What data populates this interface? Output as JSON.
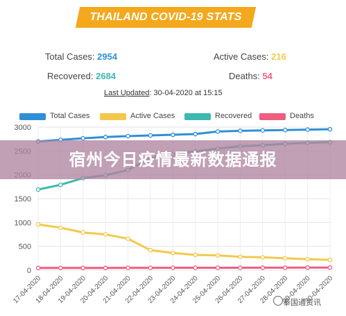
{
  "banner": {
    "title": "THAILAND COVID-19 STATS"
  },
  "stats": {
    "total_label": "Total Cases:",
    "total_value": "2954",
    "recovered_label": "Recovered:",
    "recovered_value": "2684",
    "active_label": "Active Cases:",
    "active_value": "216",
    "deaths_label": "Deaths:",
    "deaths_value": "54",
    "updated_label": "Last Updated",
    "updated_value": ": 30-04-2020 at 15:15"
  },
  "overlay": {
    "text": "宿州今日疫情最新数据通报"
  },
  "watermark": {
    "text": "泰国通资讯"
  },
  "colors": {
    "total": "#2f8fd6",
    "active": "#f5c84b",
    "recovered": "#3db8b0",
    "deaths": "#ef5d80",
    "banner": "#f3a81d",
    "overlay": "#b084a0"
  },
  "chart_data": {
    "type": "line",
    "categories": [
      "17-04-2020",
      "18-04-2020",
      "19-04-2020",
      "20-04-2020",
      "21-04-2020",
      "22-04-2020",
      "23-04-2020",
      "24-04-2020",
      "25-04-2020",
      "26-04-2020",
      "27-04-2020",
      "28-04-2020",
      "29-04-2020",
      "30-04-2020"
    ],
    "ylim": [
      0,
      3000
    ],
    "yticks": [
      0,
      500,
      1000,
      1500,
      2000,
      2500,
      3000
    ],
    "grid": true,
    "legend_position": "top",
    "series": [
      {
        "name": "Total Cases",
        "color": "#2f8fd6",
        "values": [
          2700,
          2733,
          2765,
          2792,
          2811,
          2826,
          2839,
          2854,
          2907,
          2922,
          2931,
          2938,
          2947,
          2954
        ]
      },
      {
        "name": "Active Cases",
        "color": "#f5c84b",
        "values": [
          960,
          890,
          790,
          750,
          660,
          420,
          360,
          320,
          310,
          280,
          270,
          250,
          230,
          216
        ]
      },
      {
        "name": "Recovered",
        "color": "#3db8b0",
        "values": [
          1690,
          1790,
          1930,
          1990,
          2100,
          2350,
          2430,
          2490,
          2550,
          2600,
          2620,
          2650,
          2670,
          2684
        ]
      },
      {
        "name": "Deaths",
        "color": "#ef5d80",
        "values": [
          47,
          47,
          47,
          47,
          49,
          49,
          51,
          51,
          51,
          51,
          52,
          52,
          54,
          54
        ]
      }
    ]
  }
}
